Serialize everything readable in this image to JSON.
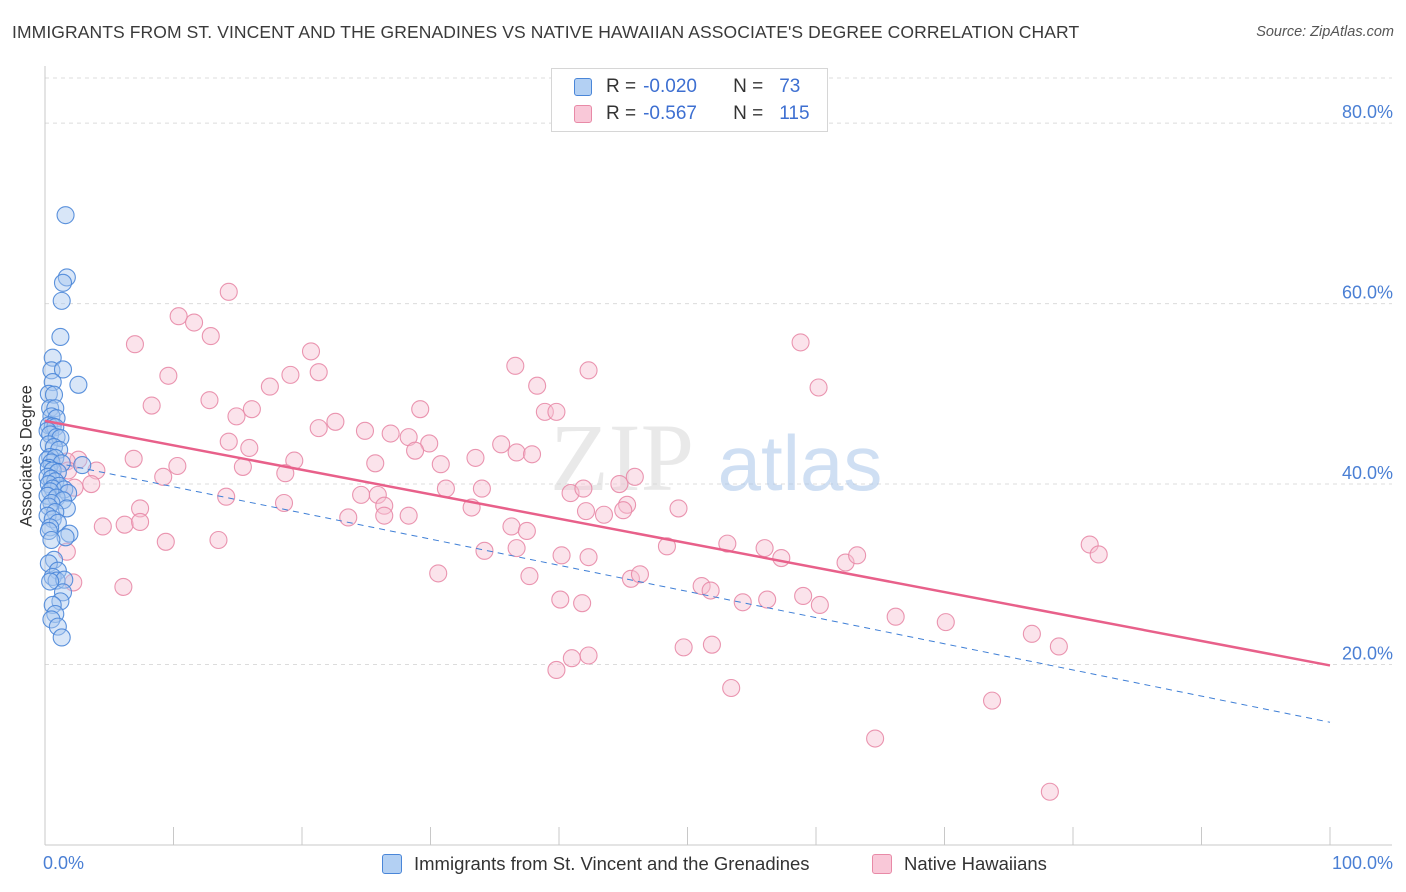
{
  "title": "IMMIGRANTS FROM ST. VINCENT AND THE GRENADINES VS NATIVE HAWAIIAN ASSOCIATE'S DEGREE CORRELATION CHART",
  "source": "Source: ZipAtlas.com",
  "watermark": {
    "zip": "ZIP",
    "atlas": "atlas"
  },
  "colors": {
    "blue_fill": "#a8c8f0",
    "blue_stroke": "#4a86d8",
    "blue_line": "#3f7fd6",
    "pink_fill": "#f7c2d3",
    "pink_stroke": "#e88aa7",
    "pink_line": "#e8608a",
    "axis_text": "#4a7fd4",
    "grid": "#dcdcdc"
  },
  "legend": [
    {
      "r_label": "R =",
      "r_value": "-0.020",
      "n_label": "N =",
      "n_value": "73"
    },
    {
      "r_label": "R =",
      "r_value": "-0.567",
      "n_label": "N =",
      "n_value": "115"
    }
  ],
  "chart_data": {
    "type": "scatter",
    "title": "IMMIGRANTS FROM ST. VINCENT AND THE GRENADINES VS NATIVE HAWAIIAN ASSOCIATE'S DEGREE CORRELATION CHART",
    "xlabel": "",
    "ylabel": "Associate's Degree",
    "xlim": [
      0,
      100
    ],
    "ylim": [
      0,
      85
    ],
    "x_tick_labels": {
      "left": "0.0%",
      "right": "100.0%"
    },
    "y_ticks": [
      {
        "value": 20,
        "label": "20.0%"
      },
      {
        "value": 40,
        "label": "40.0%"
      },
      {
        "value": 60,
        "label": "60.0%"
      },
      {
        "value": 80,
        "label": "80.0%"
      }
    ],
    "series": [
      {
        "name": "Immigrants from St. Vincent and the Grenadines",
        "color": "blue",
        "R": -0.02,
        "N": 73,
        "trend": {
          "x": [
            0,
            100
          ],
          "y": [
            42.6,
            13.6
          ],
          "style": "dashed"
        },
        "points": [
          [
            1.6,
            69.8
          ],
          [
            1.7,
            62.9
          ],
          [
            1.4,
            62.3
          ],
          [
            1.3,
            60.3
          ],
          [
            1.2,
            56.3
          ],
          [
            0.6,
            54.0
          ],
          [
            0.5,
            52.6
          ],
          [
            1.4,
            52.7
          ],
          [
            0.6,
            51.3
          ],
          [
            2.6,
            51.0
          ],
          [
            0.3,
            50.0
          ],
          [
            0.7,
            49.9
          ],
          [
            0.4,
            48.4
          ],
          [
            0.8,
            48.4
          ],
          [
            0.5,
            47.5
          ],
          [
            0.9,
            47.3
          ],
          [
            0.3,
            46.5
          ],
          [
            0.6,
            46.4
          ],
          [
            0.8,
            46.3
          ],
          [
            0.2,
            45.9
          ],
          [
            0.4,
            45.5
          ],
          [
            0.9,
            45.2
          ],
          [
            1.2,
            45.1
          ],
          [
            0.3,
            44.4
          ],
          [
            0.7,
            44.1
          ],
          [
            1.1,
            43.8
          ],
          [
            0.4,
            43.0
          ],
          [
            0.2,
            42.7
          ],
          [
            0.8,
            42.9
          ],
          [
            0.5,
            42.4
          ],
          [
            1.3,
            42.3
          ],
          [
            2.9,
            42.1
          ],
          [
            0.3,
            41.8
          ],
          [
            0.6,
            41.5
          ],
          [
            1.0,
            41.3
          ],
          [
            0.2,
            40.8
          ],
          [
            0.5,
            40.6
          ],
          [
            0.8,
            40.3
          ],
          [
            0.3,
            40.0
          ],
          [
            1.1,
            39.8
          ],
          [
            0.6,
            39.5
          ],
          [
            1.5,
            39.4
          ],
          [
            0.4,
            39.2
          ],
          [
            1.8,
            39.0
          ],
          [
            0.2,
            38.7
          ],
          [
            0.9,
            38.5
          ],
          [
            1.4,
            38.2
          ],
          [
            0.5,
            37.9
          ],
          [
            0.3,
            37.5
          ],
          [
            1.7,
            37.3
          ],
          [
            0.8,
            36.9
          ],
          [
            0.2,
            36.5
          ],
          [
            0.6,
            36.1
          ],
          [
            1.0,
            35.7
          ],
          [
            0.4,
            35.2
          ],
          [
            0.3,
            34.8
          ],
          [
            1.9,
            34.5
          ],
          [
            1.6,
            34.1
          ],
          [
            0.5,
            33.8
          ],
          [
            0.7,
            31.6
          ],
          [
            0.3,
            31.2
          ],
          [
            1.0,
            30.4
          ],
          [
            0.6,
            29.7
          ],
          [
            0.9,
            29.3
          ],
          [
            1.5,
            29.4
          ],
          [
            1.4,
            28.0
          ],
          [
            1.2,
            27.0
          ],
          [
            0.6,
            26.6
          ],
          [
            0.8,
            25.6
          ],
          [
            0.5,
            25.0
          ],
          [
            1.0,
            24.2
          ],
          [
            1.3,
            23.0
          ],
          [
            0.4,
            29.2
          ]
        ]
      },
      {
        "name": "Native Hawaiians",
        "color": "pink",
        "R": -0.567,
        "N": 115,
        "trend": {
          "x": [
            0,
            100
          ],
          "y": [
            47.0,
            19.9
          ],
          "style": "solid"
        },
        "points": [
          [
            14.3,
            61.3
          ],
          [
            10.4,
            58.6
          ],
          [
            11.6,
            57.9
          ],
          [
            12.9,
            56.4
          ],
          [
            7.0,
            55.5
          ],
          [
            20.7,
            54.7
          ],
          [
            58.8,
            55.7
          ],
          [
            9.6,
            52.0
          ],
          [
            19.1,
            52.1
          ],
          [
            21.3,
            52.4
          ],
          [
            36.6,
            53.1
          ],
          [
            42.3,
            52.6
          ],
          [
            17.5,
            50.8
          ],
          [
            38.3,
            50.9
          ],
          [
            60.2,
            50.7
          ],
          [
            8.3,
            48.7
          ],
          [
            12.8,
            49.3
          ],
          [
            16.1,
            48.3
          ],
          [
            29.2,
            48.3
          ],
          [
            38.9,
            48.0
          ],
          [
            39.8,
            48.0
          ],
          [
            14.9,
            47.5
          ],
          [
            21.3,
            46.2
          ],
          [
            22.6,
            46.9
          ],
          [
            24.9,
            45.9
          ],
          [
            26.9,
            45.6
          ],
          [
            28.3,
            45.2
          ],
          [
            29.9,
            44.5
          ],
          [
            14.3,
            44.7
          ],
          [
            15.9,
            44.0
          ],
          [
            28.8,
            43.7
          ],
          [
            35.5,
            44.4
          ],
          [
            36.7,
            43.5
          ],
          [
            37.9,
            43.3
          ],
          [
            6.9,
            42.8
          ],
          [
            2.6,
            42.7
          ],
          [
            1.7,
            42.5
          ],
          [
            19.4,
            42.6
          ],
          [
            25.7,
            42.3
          ],
          [
            30.8,
            42.2
          ],
          [
            33.5,
            42.9
          ],
          [
            10.3,
            42.0
          ],
          [
            15.4,
            41.9
          ],
          [
            18.7,
            41.2
          ],
          [
            1.8,
            41.5
          ],
          [
            4.0,
            41.5
          ],
          [
            9.2,
            40.8
          ],
          [
            3.6,
            40.0
          ],
          [
            14.1,
            38.6
          ],
          [
            24.6,
            38.8
          ],
          [
            25.9,
            38.8
          ],
          [
            31.2,
            39.5
          ],
          [
            34.0,
            39.5
          ],
          [
            40.9,
            39.0
          ],
          [
            44.7,
            40.0
          ],
          [
            45.9,
            40.8
          ],
          [
            41.9,
            39.5
          ],
          [
            45.3,
            37.7
          ],
          [
            2.3,
            39.6
          ],
          [
            7.4,
            37.3
          ],
          [
            18.6,
            37.9
          ],
          [
            26.4,
            37.6
          ],
          [
            33.2,
            37.4
          ],
          [
            42.1,
            37.0
          ],
          [
            43.5,
            36.6
          ],
          [
            45.0,
            37.1
          ],
          [
            49.3,
            37.3
          ],
          [
            26.4,
            36.5
          ],
          [
            23.6,
            36.3
          ],
          [
            28.3,
            36.5
          ],
          [
            36.3,
            35.3
          ],
          [
            37.5,
            34.8
          ],
          [
            4.5,
            35.3
          ],
          [
            6.2,
            35.5
          ],
          [
            7.4,
            35.8
          ],
          [
            9.4,
            33.6
          ],
          [
            13.5,
            33.8
          ],
          [
            48.4,
            33.1
          ],
          [
            53.1,
            33.4
          ],
          [
            56.0,
            32.9
          ],
          [
            57.3,
            31.8
          ],
          [
            62.3,
            31.3
          ],
          [
            63.2,
            32.1
          ],
          [
            34.2,
            32.6
          ],
          [
            36.7,
            32.9
          ],
          [
            40.2,
            32.1
          ],
          [
            42.3,
            31.9
          ],
          [
            1.7,
            32.5
          ],
          [
            45.6,
            29.5
          ],
          [
            30.6,
            30.1
          ],
          [
            37.7,
            29.8
          ],
          [
            46.3,
            30.0
          ],
          [
            51.1,
            28.7
          ],
          [
            51.8,
            28.2
          ],
          [
            56.2,
            27.2
          ],
          [
            54.3,
            26.9
          ],
          [
            59.0,
            27.6
          ],
          [
            60.3,
            26.6
          ],
          [
            81.3,
            33.3
          ],
          [
            82.0,
            32.2
          ],
          [
            66.2,
            25.3
          ],
          [
            70.1,
            24.7
          ],
          [
            76.8,
            23.4
          ],
          [
            78.9,
            22.0
          ],
          [
            6.1,
            28.6
          ],
          [
            2.2,
            29.1
          ],
          [
            40.1,
            27.2
          ],
          [
            41.8,
            26.8
          ],
          [
            42.3,
            21.0
          ],
          [
            39.8,
            19.4
          ],
          [
            41.0,
            20.7
          ],
          [
            49.7,
            21.9
          ],
          [
            51.9,
            22.2
          ],
          [
            53.4,
            17.4
          ],
          [
            73.7,
            16.0
          ],
          [
            64.6,
            11.8
          ],
          [
            78.2,
            5.9
          ]
        ]
      }
    ]
  },
  "bottom_legend": [
    {
      "label": "Immigrants from St. Vincent and the Grenadines"
    },
    {
      "label": "Native Hawaiians"
    }
  ]
}
